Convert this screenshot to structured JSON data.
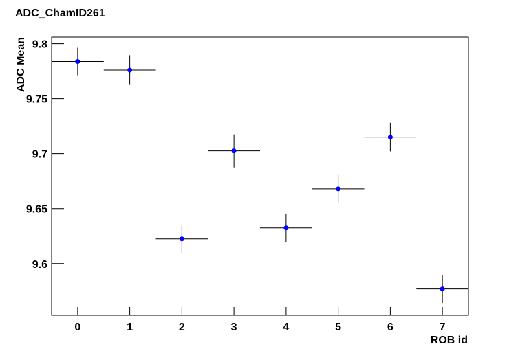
{
  "chart_data": {
    "type": "scatter",
    "title": "ADC_ChamID261",
    "x_label": "ROB id",
    "y_label": "ADC Mean",
    "x": [
      0,
      1,
      2,
      3,
      4,
      5,
      6,
      7
    ],
    "values": [
      9.7838,
      9.776,
      9.6225,
      9.7025,
      9.6325,
      9.668,
      9.715,
      9.577
    ],
    "errors": [
      0.0125,
      0.0135,
      0.013,
      0.015,
      0.013,
      0.0125,
      0.013,
      0.0128
    ],
    "xerr": [
      0.5,
      0.5,
      0.5,
      0.5,
      0.5,
      0.5,
      0.5,
      0.5
    ],
    "color": "#0000ff",
    "xlim": [
      -0.5,
      7.5
    ],
    "ylim": [
      9.553,
      9.806
    ],
    "xticks": [
      0,
      1,
      2,
      3,
      4,
      5,
      6,
      7
    ],
    "yticks": [
      9.6,
      9.65,
      9.7,
      9.75,
      9.8
    ]
  }
}
